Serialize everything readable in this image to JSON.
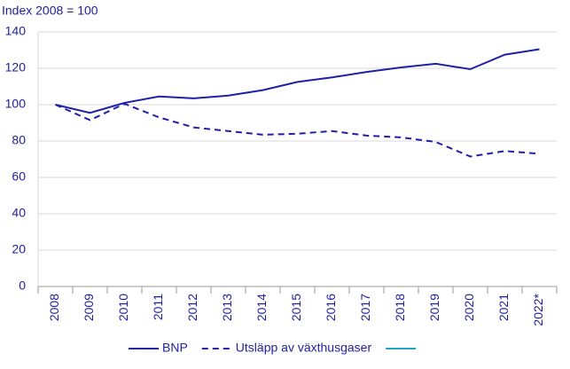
{
  "chart_data": {
    "type": "line",
    "y_label": "Index 2008 = 100",
    "categories": [
      "2008",
      "2009",
      "2010",
      "2011",
      "2012",
      "2013",
      "2014",
      "2015",
      "2016",
      "2017",
      "2018",
      "2019",
      "2020",
      "2021",
      "2022*"
    ],
    "series": [
      {
        "name": "BNP",
        "color": "#1f1fa8",
        "dashed": false,
        "values": [
          100,
          95.5,
          101,
          104.5,
          103.5,
          105,
          108,
          112.5,
          115,
          118,
          120.5,
          122.5,
          119.5,
          127.5,
          130.5
        ]
      },
      {
        "name": "Utsläpp av växthusgaser",
        "color": "#1f1fa8",
        "dashed": true,
        "values": [
          100,
          91.5,
          100.5,
          93,
          87.5,
          85.5,
          83.5,
          84,
          85.5,
          83,
          82,
          79.5,
          71.5,
          74.5,
          73
        ]
      }
    ],
    "ylim": [
      0,
      140
    ],
    "yticks": [
      0,
      20,
      40,
      60,
      80,
      100,
      120,
      140
    ],
    "grid": true
  }
}
